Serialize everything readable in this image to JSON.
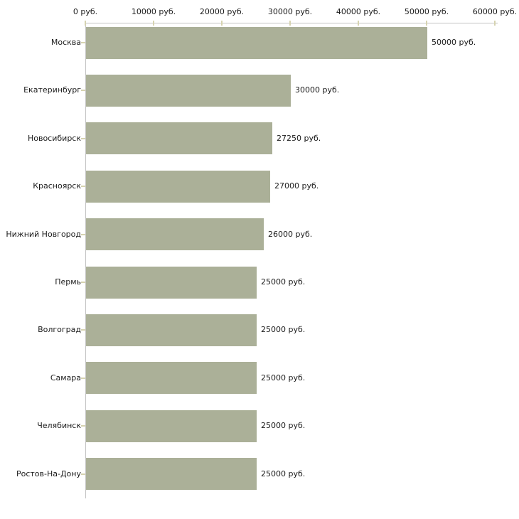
{
  "chart_data": {
    "type": "bar",
    "orientation": "horizontal",
    "title": "",
    "xlabel": "",
    "ylabel": "",
    "xlim": [
      0,
      60000
    ],
    "grid": false,
    "legend_position": "none",
    "unit": "руб.",
    "categories": [
      "Москва",
      "Екатеринбург",
      "Новосибирск",
      "Красноярск",
      "Нижний Новгород",
      "Пермь",
      "Волгоград",
      "Самара",
      "Челябинск",
      "Ростов-На-Дону"
    ],
    "values": [
      50000,
      30000,
      27250,
      27000,
      26000,
      25000,
      25000,
      25000,
      25000,
      25000
    ],
    "value_labels": [
      "50000 руб.",
      "30000 руб.",
      "27250 руб.",
      "27000 руб.",
      "26000 руб.",
      "25000 руб.",
      "25000 руб.",
      "25000 руб.",
      "25000 руб.",
      "25000 руб."
    ],
    "x_tick_values": [
      0,
      10000,
      20000,
      30000,
      40000,
      50000,
      60000
    ],
    "x_tick_labels": [
      "0 руб.",
      "10000 руб.",
      "20000 руб.",
      "30000 руб.",
      "40000 руб.",
      "50000 руб.",
      "60000 руб."
    ],
    "colors": {
      "bar": "#abb098",
      "axis": "#c4c4c4",
      "tick": "#d6d3b0",
      "text": "#1a1a1a",
      "background": "#ffffff"
    }
  }
}
